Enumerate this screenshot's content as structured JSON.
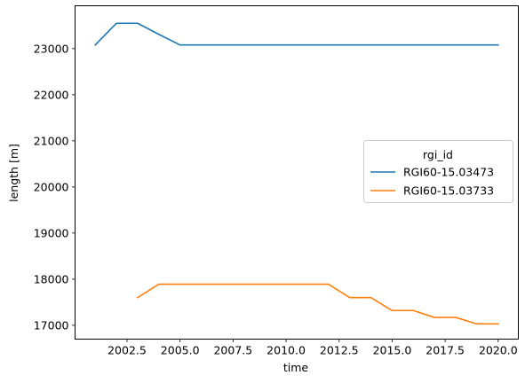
{
  "chart_data": {
    "type": "line",
    "title": "",
    "xlabel": "time",
    "ylabel": "length [m]",
    "xlim": [
      2000.05,
      2020.95
    ],
    "ylim": [
      16700,
      23930
    ],
    "grid": false,
    "x_ticks": [
      2002.5,
      2005.0,
      2007.5,
      2010.0,
      2012.5,
      2015.0,
      2017.5,
      2020.0
    ],
    "x_tick_labels": [
      "2002.5",
      "2005.0",
      "2007.5",
      "2010.0",
      "2012.5",
      "2015.0",
      "2017.5",
      "2020.0"
    ],
    "y_ticks": [
      17000,
      18000,
      19000,
      20000,
      21000,
      22000,
      23000
    ],
    "y_tick_labels": [
      "17000",
      "18000",
      "19000",
      "20000",
      "21000",
      "22000",
      "23000"
    ],
    "legend": {
      "title": "rgi_id",
      "position": "center-right"
    },
    "series": [
      {
        "name": "RGI60-15.03473",
        "color": "#1f77b4",
        "x": [
          2001,
          2002,
          2003,
          2004,
          2005,
          2006,
          2007,
          2008,
          2009,
          2010,
          2011,
          2012,
          2013,
          2014,
          2015,
          2016,
          2017,
          2018,
          2019,
          2020
        ],
        "values": [
          23080,
          23550,
          23550,
          23310,
          23080,
          23080,
          23080,
          23080,
          23080,
          23080,
          23080,
          23080,
          23080,
          23080,
          23080,
          23080,
          23080,
          23080,
          23080,
          23080
        ]
      },
      {
        "name": "RGI60-15.03733",
        "color": "#ff7f0e",
        "x": [
          2003,
          2004,
          2005,
          2006,
          2007,
          2008,
          2009,
          2010,
          2011,
          2012,
          2013,
          2014,
          2015,
          2016,
          2017,
          2018,
          2019,
          2020
        ],
        "values": [
          17600,
          17890,
          17890,
          17890,
          17890,
          17890,
          17890,
          17890,
          17890,
          17890,
          17600,
          17600,
          17320,
          17320,
          17170,
          17170,
          17030,
          17030
        ]
      }
    ]
  }
}
